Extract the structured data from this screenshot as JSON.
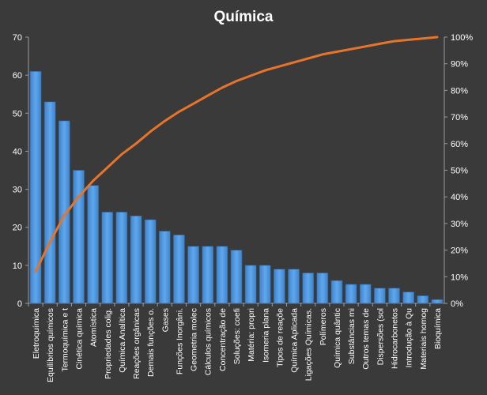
{
  "chart_data": {
    "type": "bar",
    "title": "Química",
    "categories": [
      "Eletroquímica",
      "Equilíbrios químicos",
      "Termoquímica e t",
      "Cinética química",
      "Atomística",
      "Propriedades colig.",
      "Química Analítica",
      "Reações orgânicas",
      "Demais funções o.",
      "Gases",
      "Funções Inorgâni.",
      "Geometria molec",
      "Cálculos químicos",
      "Concentração de",
      "Soluções: coefi",
      "Matéria: propri",
      "Isomeria plana",
      "Tipos de reaçõe",
      "Química Aplicada",
      "Ligações Químicas.",
      "Polímeros",
      "Química quântic",
      "Substâncias mi",
      "Outros temas de",
      "Dispersões (sol",
      "Hidrocarbonetos",
      "Introdução à Qu",
      "Materiais homog",
      "Bioquímica"
    ],
    "series": [
      {
        "type": "bar",
        "axis": "left",
        "color": "#4a90d9",
        "values": [
          61,
          53,
          48,
          35,
          31,
          24,
          24,
          23,
          22,
          19,
          18,
          15,
          15,
          15,
          14,
          10,
          10,
          9,
          9,
          8,
          8,
          6,
          5,
          5,
          4,
          4,
          3,
          2,
          1
        ]
      },
      {
        "type": "line",
        "axis": "right",
        "color": "#e8742a",
        "values": [
          0.12,
          0.23,
          0.33,
          0.4,
          0.46,
          0.51,
          0.56,
          0.6,
          0.645,
          0.685,
          0.72,
          0.75,
          0.78,
          0.81,
          0.835,
          0.855,
          0.875,
          0.89,
          0.905,
          0.92,
          0.935,
          0.945,
          0.955,
          0.965,
          0.975,
          0.985,
          0.99,
          0.995,
          1.0
        ]
      }
    ],
    "ylim": [
      0,
      70
    ],
    "yticks": [
      "0",
      "10",
      "20",
      "30",
      "40",
      "50",
      "60",
      "70"
    ],
    "y2lim": [
      0,
      1
    ],
    "y2ticks": [
      "0%",
      "10%",
      "20%",
      "30%",
      "40%",
      "50%",
      "60%",
      "70%",
      "80%",
      "90%",
      "100%"
    ],
    "grid": false,
    "legend": "none"
  }
}
